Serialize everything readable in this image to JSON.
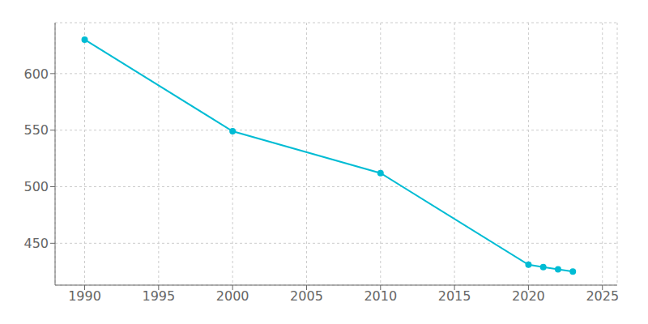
{
  "chart_data": {
    "type": "line",
    "x": [
      1990,
      2000,
      2010,
      2020,
      2021,
      2022,
      2023
    ],
    "values": [
      630,
      549,
      512,
      431,
      429,
      427,
      425
    ],
    "color": "#00bcd4",
    "marker": "circle",
    "xlim": [
      1988,
      2026
    ],
    "ylim": [
      413,
      645
    ],
    "xticks": [
      1990,
      1995,
      2000,
      2005,
      2010,
      2015,
      2020,
      2025
    ],
    "yticks": [
      450,
      500,
      550,
      600
    ],
    "grid": true
  }
}
